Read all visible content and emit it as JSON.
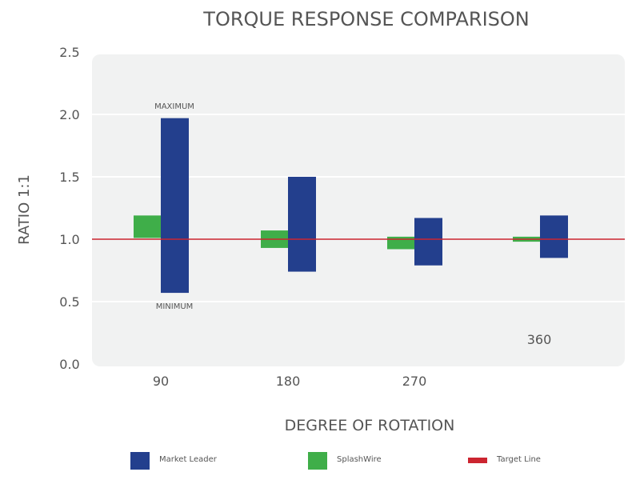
{
  "chart_data": {
    "type": "bar",
    "title": "TORQUE RESPONSE COMPARISON",
    "xlabel": "DEGREE OF ROTATION",
    "ylabel": "RATIO 1:1",
    "ylim": [
      0,
      2.5
    ],
    "yticks": [
      "0.0",
      "0.5",
      "1.0",
      "1.5",
      "2.0",
      "2.5"
    ],
    "categories": [
      "90",
      "180",
      "270",
      "360"
    ],
    "target": 1.0,
    "series": [
      {
        "name": "SplashWire",
        "color": "#3fae49",
        "ranges": [
          [
            1.01,
            1.19
          ],
          [
            0.93,
            1.07
          ],
          [
            0.92,
            1.02
          ],
          [
            0.98,
            1.02
          ]
        ]
      },
      {
        "name": "Market Leader",
        "color": "#233f8d",
        "ranges": [
          [
            0.57,
            1.97
          ],
          [
            0.74,
            1.5
          ],
          [
            0.79,
            1.17
          ],
          [
            0.85,
            1.19
          ]
        ]
      }
    ],
    "annotations": {
      "max": "MAXIMUM",
      "min": "MINIMUM"
    },
    "legend": [
      "Market Leader",
      "SplashWire",
      "Target Line"
    ],
    "target_color": "#cc2530",
    "legend_placement": "bottom"
  }
}
